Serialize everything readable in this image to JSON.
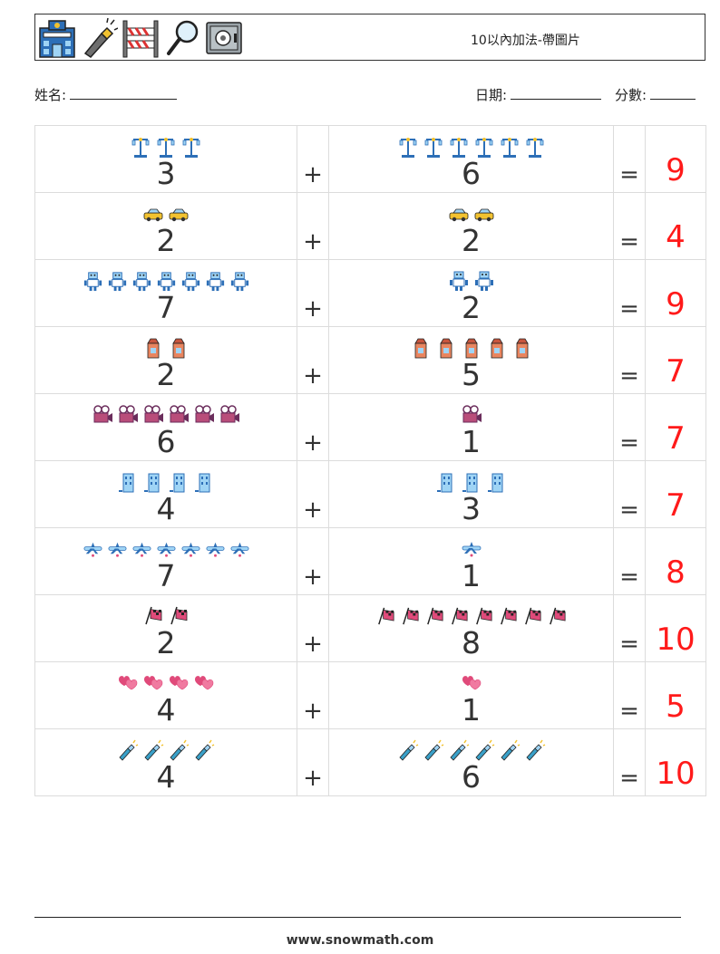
{
  "header": {
    "title": "10以內加法-帶圖片",
    "icons": [
      "police-station-icon",
      "flashlight-icon",
      "road-barrier-icon",
      "magnifier-icon",
      "safe-icon"
    ]
  },
  "fields": {
    "name_label": "姓名:",
    "date_label": "日期:",
    "score_label": "分數:"
  },
  "symbols": {
    "plus": "+",
    "equals": "="
  },
  "problems": [
    {
      "a": 3,
      "b": 6,
      "result": "9",
      "icon": "street-lamp-icon"
    },
    {
      "a": 2,
      "b": 2,
      "result": "4",
      "icon": "taxi-icon"
    },
    {
      "a": 7,
      "b": 2,
      "result": "9",
      "icon": "robot-icon"
    },
    {
      "a": 2,
      "b": 5,
      "result": "7",
      "icon": "milk-carton-icon"
    },
    {
      "a": 6,
      "b": 1,
      "result": "7",
      "icon": "movie-camera-icon"
    },
    {
      "a": 4,
      "b": 3,
      "result": "7",
      "icon": "office-building-icon"
    },
    {
      "a": 7,
      "b": 1,
      "result": "8",
      "icon": "airplane-icon"
    },
    {
      "a": 2,
      "b": 8,
      "result": "10",
      "icon": "checkered-flag-icon"
    },
    {
      "a": 4,
      "b": 1,
      "result": "5",
      "icon": "hearts-icon"
    },
    {
      "a": 4,
      "b": 6,
      "result": "10",
      "icon": "flashlight-icon"
    }
  ],
  "colors": {
    "result": "#ff1a1a",
    "grid": "#dcdcdc"
  },
  "footer": {
    "website": "www.snowmath.com"
  }
}
